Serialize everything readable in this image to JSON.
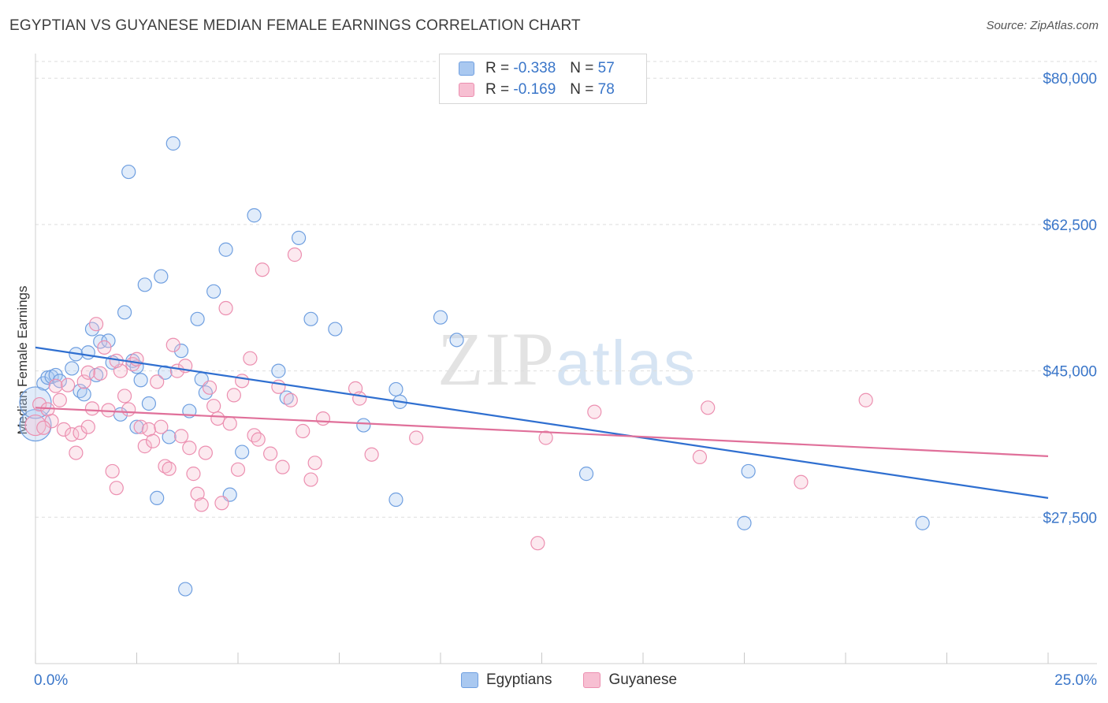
{
  "title": "EGYPTIAN VS GUYANESE MEDIAN FEMALE EARNINGS CORRELATION CHART",
  "source": "Source: ZipAtlas.com",
  "watermark": {
    "zip": "ZIP",
    "atlas": "atlas"
  },
  "legend": {
    "rows": [
      {
        "r_label": "R =",
        "r_value": "-0.338",
        "n_label": "N =",
        "n_value": "57",
        "color": "#a9c8f0",
        "border": "#6f9fe0"
      },
      {
        "r_label": "R =",
        "r_value": "-0.169",
        "n_label": "N =",
        "n_value": "78",
        "color": "#f7bfd2",
        "border": "#ec8fb0"
      }
    ]
  },
  "bottom_legend": {
    "egyptians": "Egyptians",
    "guyanese": "Guyanese"
  },
  "chart_data": {
    "type": "scatter",
    "title": "EGYPTIAN VS GUYANESE MEDIAN FEMALE EARNINGS CORRELATION CHART",
    "xlabel": "",
    "ylabel": "Median Female Earnings",
    "xlim": [
      0,
      25
    ],
    "ylim": [
      10000,
      82000
    ],
    "x_tick_labels": [
      "0.0%",
      "25.0%"
    ],
    "y_ticks": [
      27500,
      45000,
      62500,
      80000
    ],
    "y_tick_labels": [
      "$27,500",
      "$45,000",
      "$62,500",
      "$80,000"
    ],
    "grid": true,
    "legend_position": "top-center",
    "series": [
      {
        "name": "Egyptians",
        "color": "#6f9fe0",
        "trend": {
          "x": [
            0,
            25
          ],
          "y": [
            47800,
            29800
          ],
          "color": "#2f6fd0"
        },
        "points": [
          [
            0.0,
            38500
          ],
          [
            0.2,
            43500
          ],
          [
            0.3,
            44200
          ],
          [
            0.4,
            44300
          ],
          [
            0.5,
            44500
          ],
          [
            0.6,
            43800
          ],
          [
            0.9,
            45300
          ],
          [
            1.0,
            47000
          ],
          [
            1.1,
            42600
          ],
          [
            1.2,
            42200
          ],
          [
            1.3,
            47200
          ],
          [
            1.4,
            50000
          ],
          [
            1.5,
            44500
          ],
          [
            1.6,
            48500
          ],
          [
            1.8,
            48600
          ],
          [
            1.9,
            46000
          ],
          [
            2.1,
            39800
          ],
          [
            2.2,
            52000
          ],
          [
            2.3,
            68800
          ],
          [
            2.4,
            46200
          ],
          [
            2.5,
            45500
          ],
          [
            2.5,
            38300
          ],
          [
            2.6,
            43900
          ],
          [
            2.7,
            55300
          ],
          [
            2.8,
            41100
          ],
          [
            3.0,
            29800
          ],
          [
            3.1,
            56300
          ],
          [
            3.2,
            44800
          ],
          [
            3.3,
            37100
          ],
          [
            3.4,
            72200
          ],
          [
            3.6,
            47400
          ],
          [
            3.7,
            18900
          ],
          [
            3.8,
            40200
          ],
          [
            4.0,
            51200
          ],
          [
            4.1,
            44000
          ],
          [
            4.2,
            42400
          ],
          [
            4.4,
            54500
          ],
          [
            4.7,
            59500
          ],
          [
            4.8,
            30200
          ],
          [
            5.1,
            35300
          ],
          [
            5.4,
            63600
          ],
          [
            6.0,
            45000
          ],
          [
            6.2,
            41800
          ],
          [
            6.5,
            60900
          ],
          [
            6.8,
            51200
          ],
          [
            7.4,
            50000
          ],
          [
            8.1,
            38500
          ],
          [
            8.9,
            42800
          ],
          [
            9.0,
            41300
          ],
          [
            8.9,
            29600
          ],
          [
            10.0,
            51400
          ],
          [
            10.4,
            48700
          ],
          [
            13.6,
            32700
          ],
          [
            17.6,
            33000
          ],
          [
            17.5,
            26800
          ],
          [
            21.9,
            26800
          ],
          [
            0.0,
            41200
          ]
        ]
      },
      {
        "name": "Guyanese",
        "color": "#ec8fb0",
        "trend": {
          "x": [
            0,
            25
          ],
          "y": [
            40600,
            34800
          ],
          "color": "#e0709a"
        },
        "points": [
          [
            0.0,
            38500
          ],
          [
            0.1,
            41000
          ],
          [
            0.3,
            40400
          ],
          [
            0.4,
            39000
          ],
          [
            0.5,
            43200
          ],
          [
            0.6,
            41500
          ],
          [
            0.7,
            38000
          ],
          [
            0.9,
            37400
          ],
          [
            1.0,
            35200
          ],
          [
            1.1,
            37600
          ],
          [
            1.2,
            43700
          ],
          [
            1.3,
            38300
          ],
          [
            1.4,
            40500
          ],
          [
            1.5,
            50600
          ],
          [
            1.6,
            44700
          ],
          [
            1.7,
            47800
          ],
          [
            1.8,
            40300
          ],
          [
            1.9,
            33000
          ],
          [
            2.0,
            31000
          ],
          [
            2.1,
            45000
          ],
          [
            2.2,
            42000
          ],
          [
            2.3,
            40400
          ],
          [
            2.4,
            45800
          ],
          [
            2.5,
            46400
          ],
          [
            2.6,
            38300
          ],
          [
            2.7,
            36000
          ],
          [
            2.8,
            38000
          ],
          [
            2.9,
            36600
          ],
          [
            3.0,
            43700
          ],
          [
            3.1,
            38300
          ],
          [
            3.2,
            33600
          ],
          [
            3.3,
            33300
          ],
          [
            3.4,
            48100
          ],
          [
            3.5,
            45000
          ],
          [
            3.6,
            37200
          ],
          [
            3.7,
            45600
          ],
          [
            3.8,
            35800
          ],
          [
            3.9,
            32700
          ],
          [
            4.0,
            30300
          ],
          [
            4.1,
            29000
          ],
          [
            4.2,
            35200
          ],
          [
            4.3,
            43000
          ],
          [
            4.4,
            40800
          ],
          [
            4.5,
            39300
          ],
          [
            4.6,
            29200
          ],
          [
            4.7,
            52500
          ],
          [
            4.8,
            38700
          ],
          [
            4.9,
            42100
          ],
          [
            5.0,
            33200
          ],
          [
            5.1,
            43800
          ],
          [
            5.3,
            46500
          ],
          [
            5.4,
            37300
          ],
          [
            5.5,
            36800
          ],
          [
            5.6,
            57100
          ],
          [
            5.8,
            35100
          ],
          [
            6.0,
            43100
          ],
          [
            6.1,
            33500
          ],
          [
            6.3,
            41500
          ],
          [
            6.4,
            58900
          ],
          [
            6.6,
            37800
          ],
          [
            6.8,
            32000
          ],
          [
            6.9,
            34000
          ],
          [
            7.1,
            39300
          ],
          [
            7.9,
            42900
          ],
          [
            8.0,
            41700
          ],
          [
            8.3,
            35000
          ],
          [
            9.4,
            37000
          ],
          [
            12.4,
            24400
          ],
          [
            12.6,
            37000
          ],
          [
            13.8,
            40100
          ],
          [
            16.4,
            34700
          ],
          [
            16.6,
            40600
          ],
          [
            18.9,
            31700
          ],
          [
            20.5,
            41500
          ],
          [
            0.2,
            38200
          ],
          [
            0.8,
            43300
          ],
          [
            2.0,
            46200
          ],
          [
            1.3,
            44800
          ]
        ]
      }
    ]
  }
}
